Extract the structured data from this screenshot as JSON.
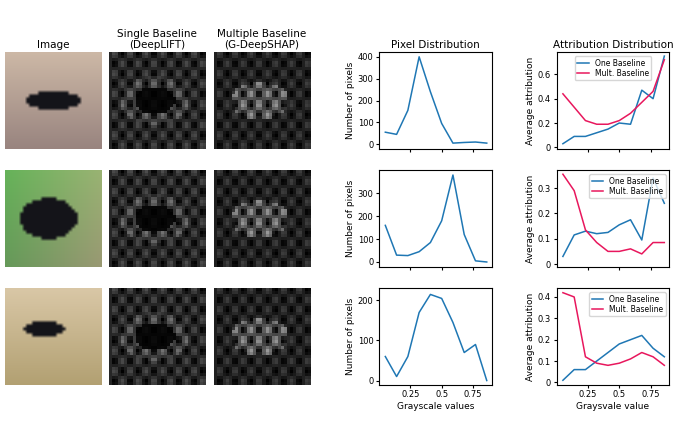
{
  "image_titles": [
    "Image",
    "Single Baseline\n(DeepLIFT)",
    "Multiple Baseline\n(G-DeepSHAP)"
  ],
  "chart_data": [
    {
      "type": "line",
      "title": "Pixel Distribution",
      "y_label": "Number of pixels",
      "x": [
        0.05,
        0.14,
        0.23,
        0.32,
        0.41,
        0.5,
        0.59,
        0.68,
        0.77,
        0.86
      ],
      "values": [
        55,
        45,
        155,
        400,
        240,
        95,
        5,
        8,
        10,
        5
      ],
      "color": "#1f77b4",
      "xlim": [
        0.0,
        0.9
      ],
      "xticks": [
        0.25,
        0.5,
        0.75
      ],
      "ylim": [
        -20,
        420
      ],
      "yticks": [
        0,
        100,
        200,
        300,
        400
      ],
      "tick_labels": "y"
    },
    {
      "type": "line",
      "title": "Attribution Distribution",
      "y_label": "Average attribution",
      "x": [
        0.05,
        0.14,
        0.23,
        0.32,
        0.41,
        0.5,
        0.59,
        0.68,
        0.77,
        0.86
      ],
      "series": [
        {
          "name": "One Baseline",
          "color": "#1f77b4",
          "values": [
            0.03,
            0.09,
            0.09,
            0.12,
            0.15,
            0.2,
            0.19,
            0.47,
            0.4,
            0.75
          ]
        },
        {
          "name": "Mult. Baseline",
          "color": "#e8175d",
          "values": [
            0.44,
            0.33,
            0.22,
            0.19,
            0.19,
            0.22,
            0.28,
            0.37,
            0.46,
            0.72
          ]
        }
      ],
      "xlim": [
        0.0,
        0.9
      ],
      "xticks": [
        0.25,
        0.5,
        0.75
      ],
      "ylim": [
        -0.01,
        0.78
      ],
      "yticks": [
        0,
        0.2,
        0.4,
        0.6
      ],
      "legend": "upper center",
      "tick_labels": "y"
    },
    {
      "type": "line",
      "y_label": "Number of pixels",
      "x": [
        0.05,
        0.14,
        0.23,
        0.32,
        0.41,
        0.5,
        0.59,
        0.68,
        0.77,
        0.86
      ],
      "values": [
        160,
        30,
        28,
        45,
        85,
        180,
        380,
        120,
        5,
        0
      ],
      "color": "#1f77b4",
      "xlim": [
        0.0,
        0.9
      ],
      "xticks": [
        0.25,
        0.5,
        0.75
      ],
      "ylim": [
        -20,
        400
      ],
      "yticks": [
        0,
        100,
        200,
        300
      ],
      "tick_labels": "y"
    },
    {
      "type": "line",
      "y_label": "Average attribution",
      "x": [
        0.05,
        0.14,
        0.23,
        0.32,
        0.41,
        0.5,
        0.59,
        0.68,
        0.77,
        0.86
      ],
      "series": [
        {
          "name": "One Baseline",
          "color": "#1f77b4",
          "values": [
            0.03,
            0.115,
            0.13,
            0.12,
            0.125,
            0.155,
            0.175,
            0.095,
            0.34,
            0.24
          ]
        },
        {
          "name": "Mult. Baseline",
          "color": "#e8175d",
          "values": [
            0.355,
            0.29,
            0.135,
            0.085,
            0.05,
            0.05,
            0.06,
            0.04,
            0.085,
            0.085
          ]
        }
      ],
      "xlim": [
        0.0,
        0.9
      ],
      "xticks": [
        0.25,
        0.5,
        0.75
      ],
      "ylim": [
        -0.01,
        0.37
      ],
      "yticks": [
        0,
        0.1,
        0.2,
        0.3
      ],
      "legend": "upper right",
      "tick_labels": "y"
    },
    {
      "type": "line",
      "y_label": "Number of pixels",
      "x_label": "Grayscale values",
      "x": [
        0.05,
        0.14,
        0.23,
        0.32,
        0.41,
        0.5,
        0.59,
        0.68,
        0.77,
        0.86
      ],
      "values": [
        60,
        10,
        60,
        170,
        215,
        205,
        145,
        70,
        90,
        0
      ],
      "color": "#1f77b4",
      "xlim": [
        0.0,
        0.9
      ],
      "xticks": [
        0.25,
        0.5,
        0.75
      ],
      "ylim": [
        -10,
        230
      ],
      "yticks": [
        0,
        100,
        200
      ]
    },
    {
      "type": "line",
      "y_label": "Average attribution",
      "x_label": "Graysvale value",
      "x": [
        0.05,
        0.14,
        0.23,
        0.32,
        0.41,
        0.5,
        0.59,
        0.68,
        0.77,
        0.86
      ],
      "series": [
        {
          "name": "One Baseline",
          "color": "#1f77b4",
          "values": [
            0.01,
            0.06,
            0.06,
            0.1,
            0.14,
            0.18,
            0.2,
            0.22,
            0.16,
            0.12
          ]
        },
        {
          "name": "Mult. Baseline",
          "color": "#e8175d",
          "values": [
            0.42,
            0.4,
            0.12,
            0.09,
            0.08,
            0.09,
            0.11,
            0.14,
            0.12,
            0.08
          ]
        }
      ],
      "xlim": [
        0.0,
        0.9
      ],
      "xticks": [
        0.25,
        0.5,
        0.75
      ],
      "ylim": [
        -0.01,
        0.44
      ],
      "yticks": [
        0,
        0.1,
        0.2,
        0.3,
        0.4
      ],
      "legend": "upper right"
    }
  ]
}
